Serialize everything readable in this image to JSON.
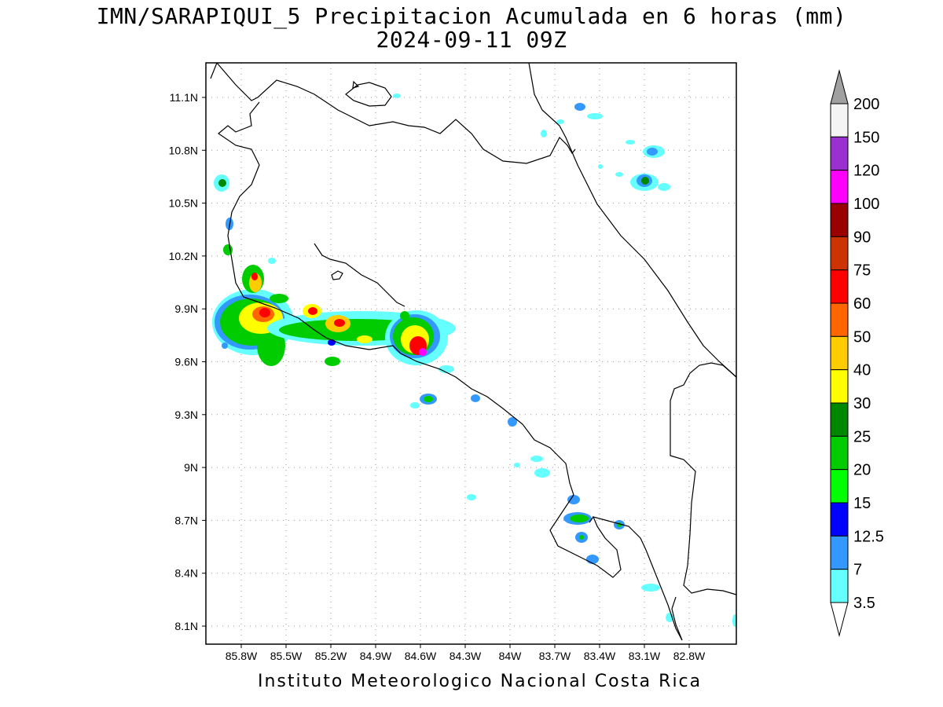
{
  "title_line1": "IMN/SARAPIQUI_5 Precipitacion Acumulada en 6 horas (mm)",
  "title_line2": "2024-09-11 09Z",
  "footer": "Instituto Meteorologico Nacional Costa Rica",
  "lat_ticks": [
    "11.1N",
    "10.8N",
    "10.5N",
    "10.2N",
    "9.9N",
    "9.6N",
    "9.3N",
    "9N",
    "8.7N",
    "8.4N",
    "8.1N"
  ],
  "lon_ticks": [
    "85.8W",
    "85.5W",
    "85.2W",
    "84.9W",
    "84.6W",
    "84.3W",
    "84W",
    "83.7W",
    "83.4W",
    "83.1W",
    "82.8W"
  ],
  "colorbar": {
    "labels": [
      "200",
      "150",
      "120",
      "100",
      "90",
      "75",
      "60",
      "50",
      "40",
      "30",
      "25",
      "20",
      "15",
      "12.5",
      "7",
      "3.5"
    ],
    "colors": [
      "#f4f4f4",
      "#9b30d0",
      "#ff00ff",
      "#990000",
      "#cc3300",
      "#ff0000",
      "#ff6600",
      "#ffcc00",
      "#ffff00",
      "#008800",
      "#00cc00",
      "#00ff00",
      "#0000ff",
      "#3399ff",
      "#66ffff"
    ],
    "over_color": "#a0a0a0",
    "under_color": "#ffffff"
  }
}
